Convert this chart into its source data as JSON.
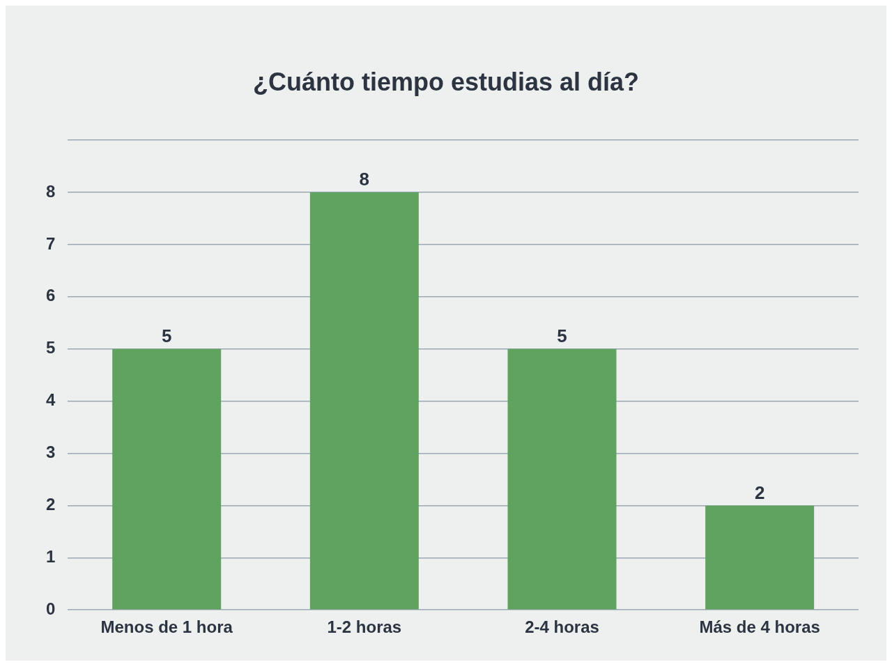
{
  "chart_data": {
    "type": "bar",
    "title": "¿Cuánto tiempo estudias al día?",
    "categories": [
      "Menos de 1 hora",
      "1-2 horas",
      "2-4 horas",
      "Más de 4 horas"
    ],
    "values": [
      5,
      8,
      5,
      2
    ],
    "color": "#5fa35f",
    "ylim": [
      0,
      9
    ],
    "yticks": [
      0,
      1,
      2,
      3,
      4,
      5,
      6,
      7,
      8,
      {
        "value": 9,
        "label": null
      }
    ],
    "grid": "y",
    "data_labels": true
  }
}
